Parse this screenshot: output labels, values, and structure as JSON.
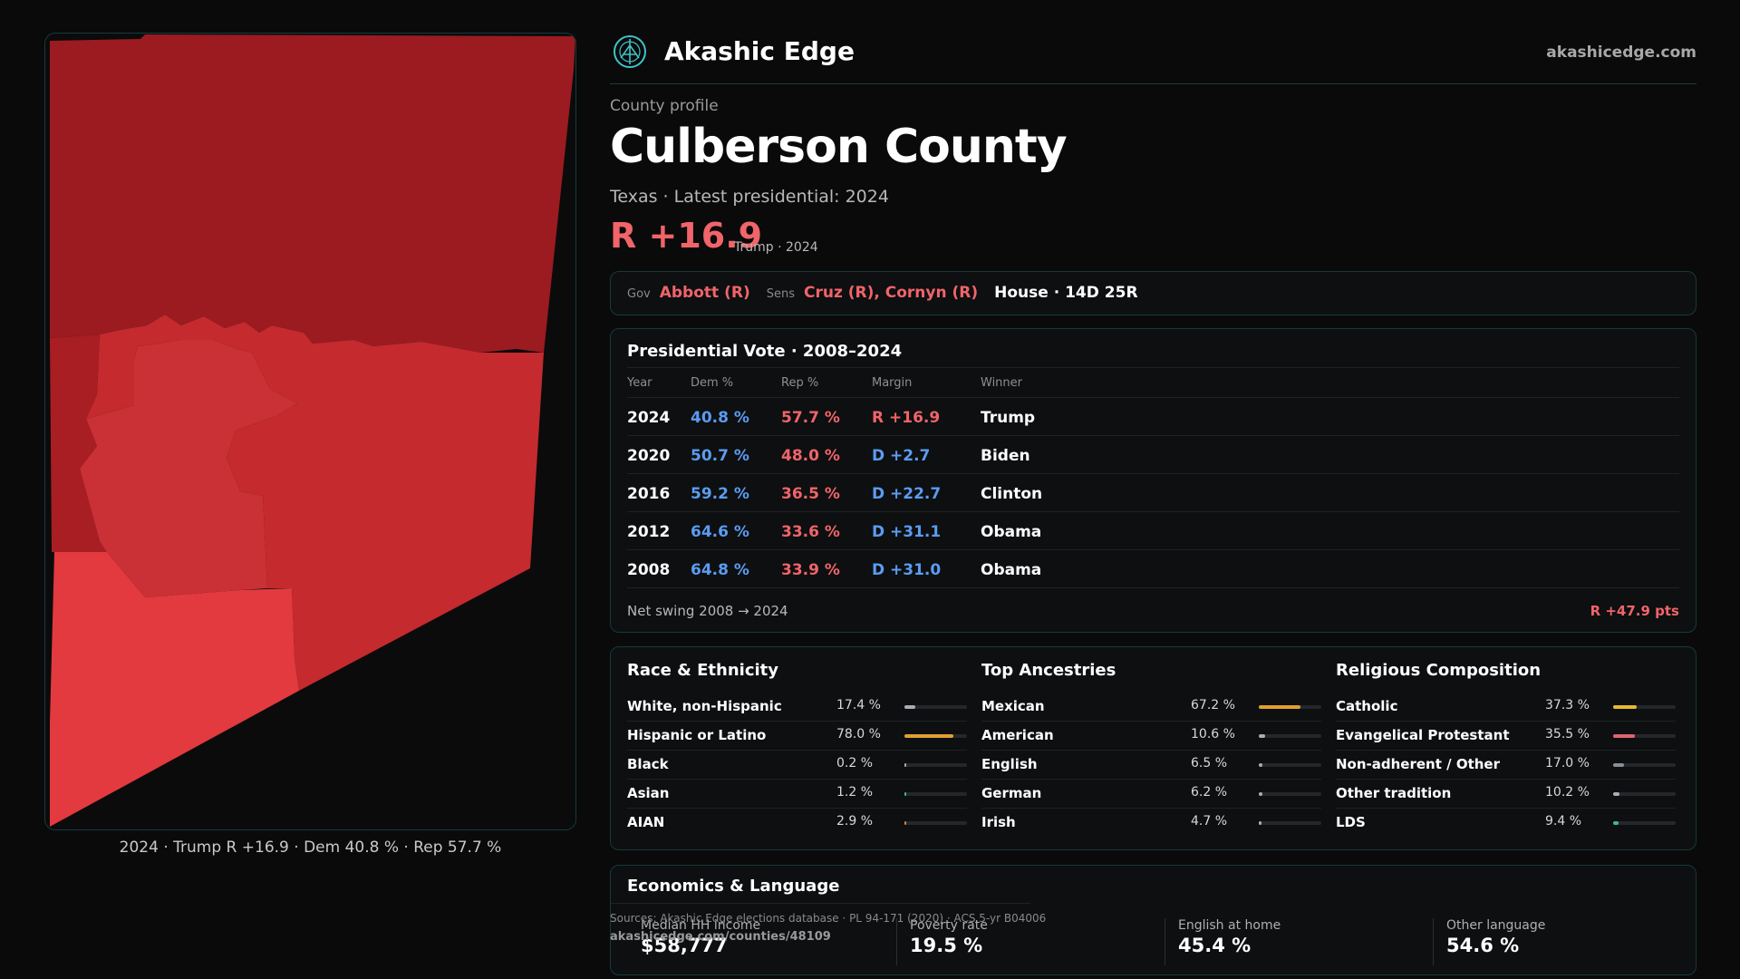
{
  "header": {
    "brand": "Akashic Edge",
    "site_url": "akashicedge.com",
    "logo_icon": "compass-logo-icon"
  },
  "profile": {
    "label": "County profile",
    "county": "Culberson County",
    "subtitle": "Texas · Latest presidential: 2024",
    "margin": "R +16.9",
    "margin_note": "Trump · 2024"
  },
  "officials": {
    "gov_label": "Gov",
    "gov": "Abbott (R)",
    "sens_label": "Sens",
    "sens": "Cruz (R), Cornyn (R)",
    "house": "House · 14D 25R"
  },
  "presidential": {
    "title": "Presidential Vote · 2008–2024",
    "columns": [
      "Year",
      "Dem %",
      "Rep %",
      "Margin",
      "Winner"
    ],
    "rows": [
      {
        "year": "2024",
        "dem": "40.8 %",
        "rep": "57.7 %",
        "margin": "R +16.9",
        "winner": "Trump",
        "margin_party": "rep"
      },
      {
        "year": "2020",
        "dem": "50.7 %",
        "rep": "48.0 %",
        "margin": "D +2.7",
        "winner": "Biden",
        "margin_party": "dem"
      },
      {
        "year": "2016",
        "dem": "59.2 %",
        "rep": "36.5 %",
        "margin": "D +22.7",
        "winner": "Clinton",
        "margin_party": "dem"
      },
      {
        "year": "2012",
        "dem": "64.6 %",
        "rep": "33.6 %",
        "margin": "D +31.1",
        "winner": "Obama",
        "margin_party": "dem"
      },
      {
        "year": "2008",
        "dem": "64.8 %",
        "rep": "33.9 %",
        "margin": "D +31.0",
        "winner": "Obama",
        "margin_party": "dem"
      }
    ],
    "net_swing_label": "Net swing 2008 → 2024",
    "net_swing_value": "R +47.9 pts"
  },
  "demographics": [
    {
      "title": "Race & Ethnicity",
      "rows": [
        {
          "label": "White, non-Hispanic",
          "value": "17.4 %",
          "pct": 17.4,
          "color": "#a9adb4"
        },
        {
          "label": "Hispanic or Latino",
          "value": "78.0 %",
          "pct": 78.0,
          "color": "#e0a030"
        },
        {
          "label": "Black",
          "value": "0.2 %",
          "pct": 0.2,
          "color": "#a9adb4"
        },
        {
          "label": "Asian",
          "value": "1.2 %",
          "pct": 1.2,
          "color": "#3fb5a0"
        },
        {
          "label": "AIAN",
          "value": "2.9 %",
          "pct": 2.9,
          "color": "#d9823a"
        }
      ]
    },
    {
      "title": "Top Ancestries",
      "rows": [
        {
          "label": "Mexican",
          "value": "67.2 %",
          "pct": 67.2,
          "color": "#e0a030"
        },
        {
          "label": "American",
          "value": "10.6 %",
          "pct": 10.6,
          "color": "#a9adb4"
        },
        {
          "label": "English",
          "value": "6.5 %",
          "pct": 6.5,
          "color": "#a9adb4"
        },
        {
          "label": "German",
          "value": "6.2 %",
          "pct": 6.2,
          "color": "#a9adb4"
        },
        {
          "label": "Irish",
          "value": "4.7 %",
          "pct": 4.7,
          "color": "#a9adb4"
        }
      ]
    },
    {
      "title": "Religious Composition",
      "rows": [
        {
          "label": "Catholic",
          "value": "37.3 %",
          "pct": 37.3,
          "color": "#e8b830"
        },
        {
          "label": "Evangelical Protestant",
          "value": "35.5 %",
          "pct": 35.5,
          "color": "#e06570"
        },
        {
          "label": "Non-adherent / Other",
          "value": "17.0 %",
          "pct": 17.0,
          "color": "#8a8e95"
        },
        {
          "label": "Other tradition",
          "value": "10.2 %",
          "pct": 10.2,
          "color": "#a9adb4"
        },
        {
          "label": "LDS",
          "value": "9.4 %",
          "pct": 9.4,
          "color": "#3fb5a0"
        }
      ]
    }
  ],
  "economics": {
    "title": "Economics & Language",
    "items": [
      {
        "label": "Median HH income",
        "value": "$58,777"
      },
      {
        "label": "Poverty rate",
        "value": "19.5 %"
      },
      {
        "label": "English at home",
        "value": "45.4 %"
      },
      {
        "label": "Other language",
        "value": "54.6 %"
      }
    ]
  },
  "map": {
    "caption": "2024 · Trump R +16.9 · Dem 40.8 % · Rep 57.7 %",
    "colors": {
      "dark": "#9b1b20",
      "mid": "#c42a2e",
      "light": "#e23a3f",
      "accent": "#a81e23"
    }
  },
  "footer": {
    "sources": "Sources: Akashic Edge elections database · PL 94-171 (2020) · ACS 5-yr B04006",
    "url": "akashicedge.com/counties/48109"
  },
  "colors": {
    "dem": "#5b9cf2",
    "rep": "#f0646a",
    "accent_border": "#17393b"
  }
}
